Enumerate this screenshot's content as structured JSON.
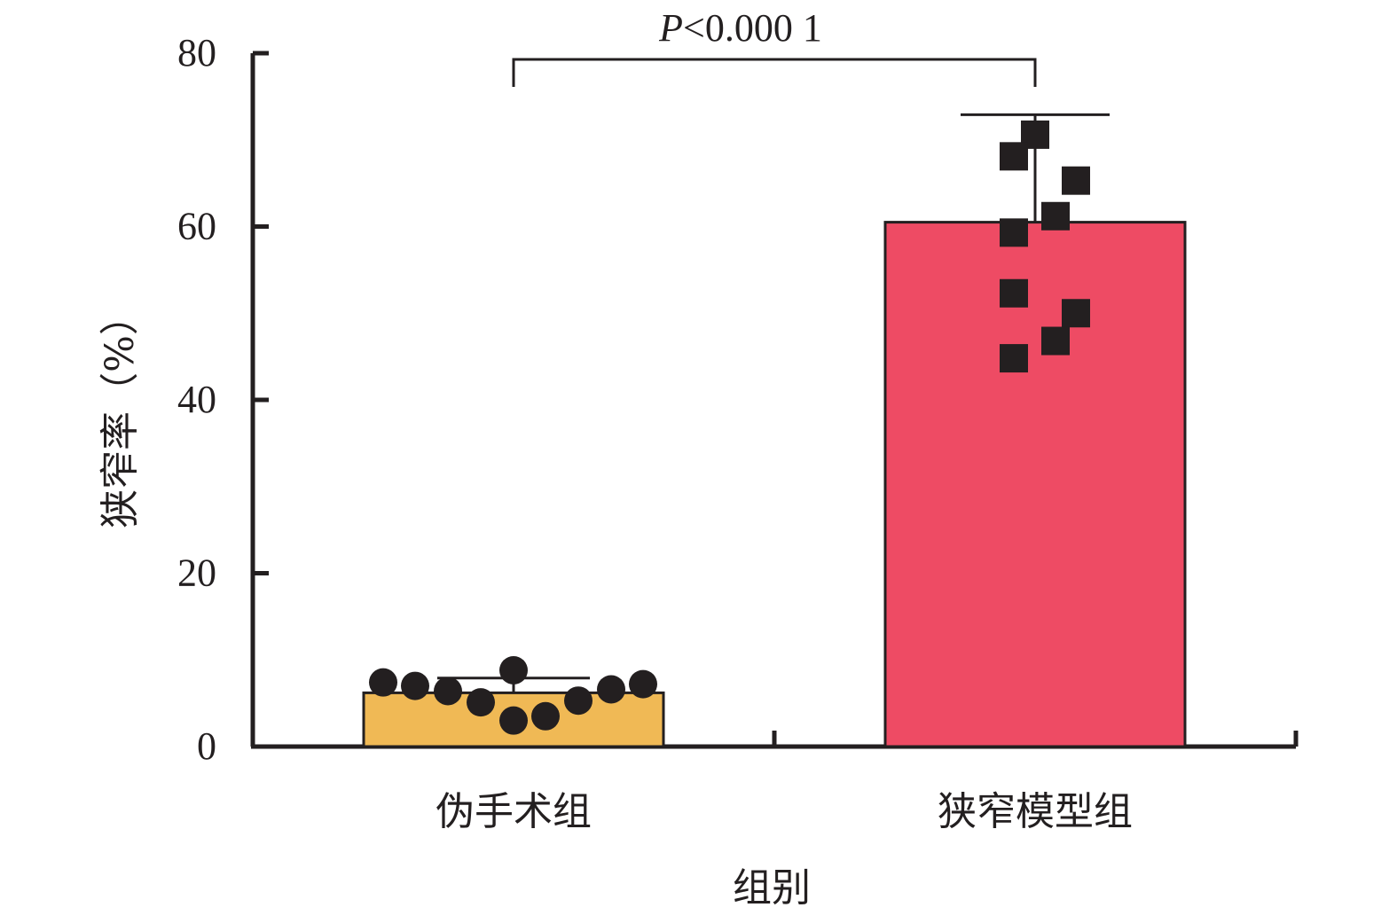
{
  "chart_data": {
    "type": "bar",
    "categories": [
      "伪手术组",
      "狭窄模型组"
    ],
    "values": [
      6.2,
      60.5
    ],
    "error_upper": [
      7.9,
      72.9
    ],
    "xlabel": "组别",
    "ylabel": "狭窄率（%）",
    "ylim": [
      0,
      80
    ],
    "yticks": [
      0,
      20,
      40,
      60,
      80
    ],
    "grid": false,
    "legend": "none",
    "series_points": [
      {
        "category": "伪手术组",
        "marker": "circle",
        "values": [
          7.4,
          7.0,
          6.4,
          5.1,
          3.0,
          3.5,
          5.3,
          6.6,
          7.2,
          8.8
        ]
      },
      {
        "category": "狭窄模型组",
        "marker": "square",
        "values": [
          70.6,
          68.1,
          65.3,
          61.2,
          59.3,
          52.3,
          50.0,
          46.8,
          44.8
        ]
      }
    ],
    "bar_colors": [
      "#f0b955",
      "#ee4b64"
    ],
    "marker_color": "#231f20",
    "annotation": {
      "text_italic": "P",
      "text_rest": "<0.000 1"
    }
  }
}
